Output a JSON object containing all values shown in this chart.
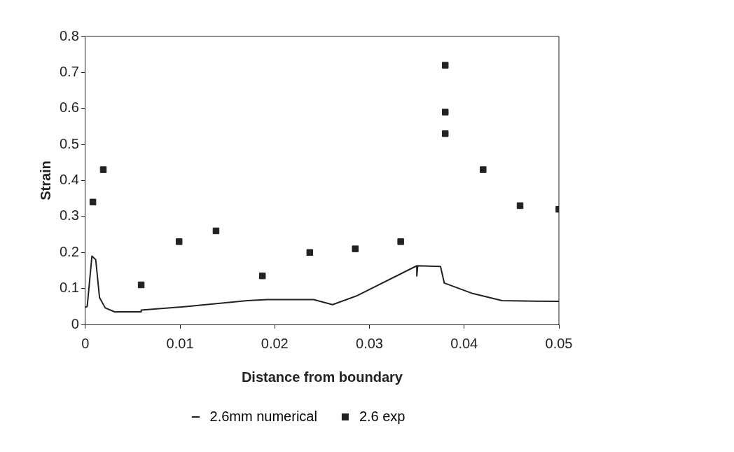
{
  "chart_data": {
    "type": "scatter",
    "xlabel": "Distance from boundary",
    "ylabel": "Strain",
    "xlim": [
      0,
      0.05
    ],
    "xticks": [
      0,
      0.01,
      0.02,
      0.03,
      0.04,
      0.05
    ],
    "ylim": [
      0,
      0.8
    ],
    "yticks": [
      0,
      0.1,
      0.2,
      0.3,
      0.4,
      0.5,
      0.6,
      0.7,
      0.8
    ],
    "grid": false,
    "legend": "bottom",
    "series": [
      {
        "name": "2.6mm numerical",
        "type": "line",
        "color": "#222222",
        "marker": "none",
        "line_style": "solid",
        "x": [
          0,
          0.0002,
          0.0007,
          0.0011,
          0.0015,
          0.0021,
          0.0031,
          0.0059,
          0.0059,
          0.0108,
          0.0171,
          0.0192,
          0.0241,
          0.0261,
          0.0287,
          0.035,
          0.035,
          0.0351,
          0.0375,
          0.0379,
          0.0409,
          0.044,
          0.05
        ],
        "values": [
          0.048,
          0.05,
          0.19,
          0.18,
          0.075,
          0.046,
          0.035,
          0.035,
          0.04,
          0.05,
          0.066,
          0.069,
          0.069,
          0.055,
          0.08,
          0.163,
          0.135,
          0.163,
          0.161,
          0.115,
          0.086,
          0.066,
          0.064
        ]
      },
      {
        "name": "2.6 exp",
        "type": "scatter",
        "color": "#222222",
        "marker": "square",
        "x": [
          0.0008,
          0.0019,
          0.0059,
          0.0099,
          0.0138,
          0.0187,
          0.0237,
          0.0285,
          0.0333,
          0.038,
          0.038,
          0.038,
          0.042,
          0.0459,
          0.05
        ],
        "values": [
          0.34,
          0.43,
          0.11,
          0.23,
          0.26,
          0.135,
          0.2,
          0.21,
          0.23,
          0.72,
          0.59,
          0.53,
          0.43,
          0.33,
          0.32
        ]
      }
    ]
  }
}
